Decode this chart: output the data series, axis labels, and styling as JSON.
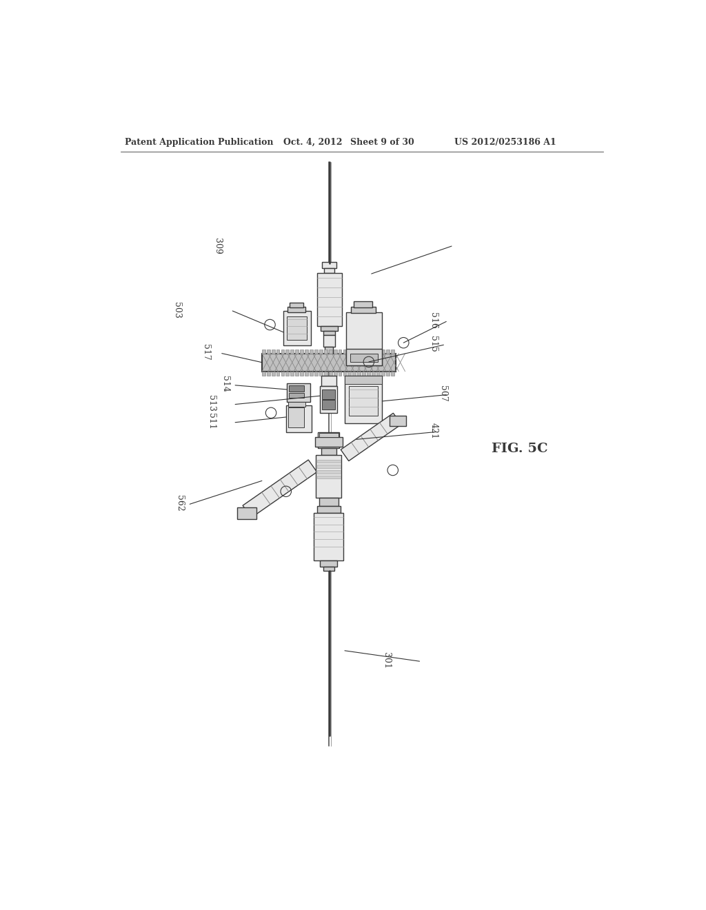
{
  "title": "Patent Application Publication",
  "date": "Oct. 4, 2012",
  "sheet": "Sheet 9 of 30",
  "patent_num": "US 2012/0253186 A1",
  "fig_label": "FIG. 5C",
  "bg_color": "#ffffff",
  "line_color": "#3a3a3a",
  "gray_light": "#e8e8e8",
  "gray_mid": "#cccccc",
  "gray_dark": "#999999",
  "gray_gear": "#b0b0b0"
}
